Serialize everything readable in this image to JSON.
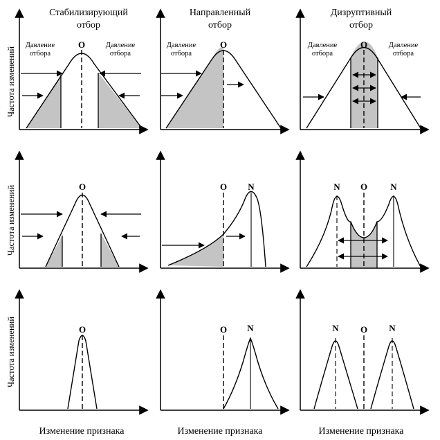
{
  "columns": [
    {
      "title_line1": "Стабилизирующий",
      "title_line2": "отбор"
    },
    {
      "title_line1": "Направленный",
      "title_line2": "отбор"
    },
    {
      "title_line1": "Дизруптивный",
      "title_line2": "отбор"
    }
  ],
  "pressure_label": {
    "line1": "Давление",
    "line2": "отбора"
  },
  "y_axis_label": "Частота изменений",
  "x_axis_label": "Изменение признака",
  "markers": {
    "original": "O",
    "new": "N"
  },
  "colors": {
    "fill": "#c4c4c4",
    "stroke": "#000000"
  }
}
